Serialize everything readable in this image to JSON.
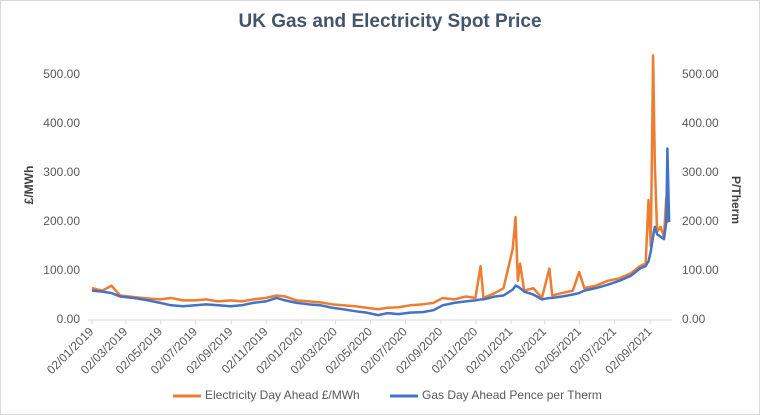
{
  "chart_data": {
    "type": "line",
    "title": "UK Gas and Electricity Spot Price",
    "y_label": "£/MWh",
    "y2_label": "P/Therm",
    "x": [
      "2019-01-02",
      "2019-01-20",
      "2019-02-05",
      "2019-02-20",
      "2019-03-15",
      "2019-04-10",
      "2019-05-01",
      "2019-05-20",
      "2019-06-10",
      "2019-07-01",
      "2019-07-20",
      "2019-08-10",
      "2019-09-01",
      "2019-09-20",
      "2019-10-10",
      "2019-11-01",
      "2019-11-20",
      "2019-12-05",
      "2019-12-25",
      "2020-01-15",
      "2020-02-05",
      "2020-02-25",
      "2020-03-15",
      "2020-04-05",
      "2020-04-25",
      "2020-05-15",
      "2020-06-01",
      "2020-06-20",
      "2020-07-10",
      "2020-08-01",
      "2020-08-20",
      "2020-09-05",
      "2020-09-25",
      "2020-10-15",
      "2020-11-01",
      "2020-11-10",
      "2020-11-15",
      "2020-12-05",
      "2020-12-20",
      "2021-01-05",
      "2021-01-10",
      "2021-01-14",
      "2021-01-18",
      "2021-01-25",
      "2021-02-10",
      "2021-02-25",
      "2021-03-10",
      "2021-03-15",
      "2021-04-01",
      "2021-04-20",
      "2021-05-01",
      "2021-05-10",
      "2021-05-30",
      "2021-06-20",
      "2021-07-10",
      "2021-07-30",
      "2021-08-15",
      "2021-08-25",
      "2021-08-30",
      "2021-09-03",
      "2021-09-07",
      "2021-09-10",
      "2021-09-14",
      "2021-09-20",
      "2021-09-26",
      "2021-09-30",
      "2021-10-02",
      "2021-10-05"
    ],
    "series": [
      {
        "name": "Electricity Day Ahead £/MWh",
        "color": "#ed7d31",
        "values": [
          65,
          60,
          70,
          50,
          47,
          44,
          42,
          45,
          40,
          40,
          42,
          38,
          40,
          38,
          42,
          45,
          50,
          48,
          40,
          38,
          36,
          32,
          30,
          28,
          25,
          22,
          25,
          26,
          30,
          32,
          35,
          45,
          42,
          48,
          45,
          110,
          45,
          55,
          65,
          145,
          210,
          80,
          115,
          60,
          65,
          45,
          105,
          50,
          55,
          60,
          98,
          65,
          70,
          80,
          85,
          95,
          110,
          115,
          245,
          150,
          540,
          320,
          180,
          190,
          170,
          250,
          200,
          210
        ]
      },
      {
        "name": "Gas Day Ahead Pence per Therm",
        "color": "#4472c4",
        "axis": "y2",
        "values": [
          60,
          58,
          55,
          48,
          45,
          40,
          35,
          30,
          28,
          30,
          32,
          30,
          28,
          30,
          35,
          38,
          45,
          40,
          35,
          32,
          30,
          25,
          22,
          18,
          15,
          10,
          14,
          12,
          15,
          16,
          20,
          30,
          35,
          38,
          40,
          42,
          42,
          48,
          50,
          62,
          70,
          68,
          65,
          58,
          52,
          42,
          45,
          45,
          48,
          52,
          55,
          60,
          65,
          72,
          80,
          90,
          105,
          110,
          120,
          140,
          170,
          190,
          175,
          170,
          165,
          200,
          350,
          200
        ]
      }
    ],
    "xlim": [
      "2018-12-26",
      "2021-10-10"
    ],
    "xticks": [
      {
        "value": "2019-01-02",
        "label": "02/01/2019"
      },
      {
        "value": "2019-03-02",
        "label": "02/03/2019"
      },
      {
        "value": "2019-05-02",
        "label": "02/05/2019"
      },
      {
        "value": "2019-07-02",
        "label": "02/07/2019"
      },
      {
        "value": "2019-09-02",
        "label": "02/09/2019"
      },
      {
        "value": "2019-11-02",
        "label": "02/11/2019"
      },
      {
        "value": "2020-01-02",
        "label": "02/01/2020"
      },
      {
        "value": "2020-03-02",
        "label": "02/03/2020"
      },
      {
        "value": "2020-05-02",
        "label": "02/05/2020"
      },
      {
        "value": "2020-07-02",
        "label": "02/07/2020"
      },
      {
        "value": "2020-09-02",
        "label": "02/09/2020"
      },
      {
        "value": "2020-11-02",
        "label": "02/11/2020"
      },
      {
        "value": "2021-01-02",
        "label": "02/01/2021"
      },
      {
        "value": "2021-03-02",
        "label": "02/03/2021"
      },
      {
        "value": "2021-05-02",
        "label": "02/05/2021"
      },
      {
        "value": "2021-07-02",
        "label": "02/07/2021"
      },
      {
        "value": "2021-09-02",
        "label": "02/09/2021"
      }
    ],
    "ylim": [
      0,
      550
    ],
    "yticks": [
      {
        "value": 0,
        "label": "0.00"
      },
      {
        "value": 100,
        "label": "100.00"
      },
      {
        "value": 200,
        "label": "200.00"
      },
      {
        "value": 300,
        "label": "300.00"
      },
      {
        "value": 400,
        "label": "400.00"
      },
      {
        "value": 500,
        "label": "500.00"
      }
    ],
    "y2lim": [
      0,
      550
    ],
    "y2ticks": [
      {
        "value": 0,
        "label": "0.00"
      },
      {
        "value": 100,
        "label": "100.00"
      },
      {
        "value": 200,
        "label": "200.00"
      },
      {
        "value": 300,
        "label": "300.00"
      },
      {
        "value": 400,
        "label": "400.00"
      },
      {
        "value": 500,
        "label": "500.00"
      }
    ],
    "grid": false,
    "legend": "bottom"
  }
}
